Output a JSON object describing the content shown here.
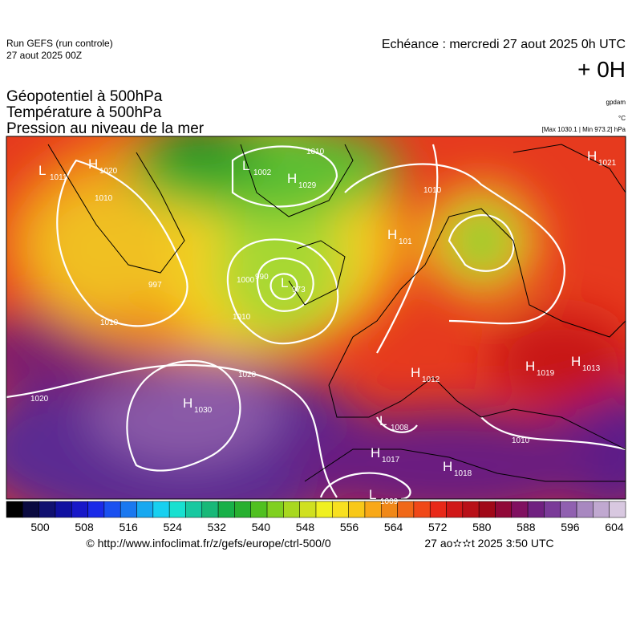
{
  "header": {
    "run": "Run GEFS (run controle)",
    "run_date": "27 aout 2025 00Z",
    "echeance": "Echéance : mercredi 27 aout 2025 0h UTC",
    "lead": "+ 0H",
    "fields": [
      "Géopotentiel à 500hPa",
      "Température à 500hPa",
      "Pression au niveau de la mer"
    ],
    "unit_geopotential": "gpdam",
    "unit_temperature": "°C",
    "extremes": "[Max 1030.1 | Min 973.2] hPa"
  },
  "map": {
    "centers": [
      {
        "kind": "L",
        "value": "1011"
      },
      {
        "kind": "H",
        "value": "1020"
      },
      {
        "kind": "L",
        "value": "1002"
      },
      {
        "kind": "H",
        "value": "1029"
      },
      {
        "kind": "H",
        "value": "1021"
      },
      {
        "kind": "H",
        "value": "101"
      },
      {
        "kind": "L",
        "value": "973"
      },
      {
        "kind": "H",
        "value": "1012"
      },
      {
        "kind": "H",
        "value": "1019"
      },
      {
        "kind": "H",
        "value": "1013"
      },
      {
        "kind": "H",
        "value": "1030"
      },
      {
        "kind": "L",
        "value": "1008"
      },
      {
        "kind": "H",
        "value": "1017"
      },
      {
        "kind": "H",
        "value": "1018"
      },
      {
        "kind": "L",
        "value": "1009"
      }
    ],
    "isobar_labels": [
      "1010",
      "997",
      "1010",
      "1020",
      "1020",
      "1010",
      "1010",
      "990",
      "1000",
      "1010",
      "1010"
    ]
  },
  "colorbar": {
    "ticks": [
      500,
      508,
      516,
      524,
      532,
      540,
      548,
      556,
      564,
      572,
      580,
      588,
      596,
      604
    ]
  },
  "footer": {
    "source": "© http://www.infoclimat.fr/z/gefs/europe/ctrl-500/0",
    "timestamp": "27 ao✫✫t 2025  3:50 UTC"
  }
}
